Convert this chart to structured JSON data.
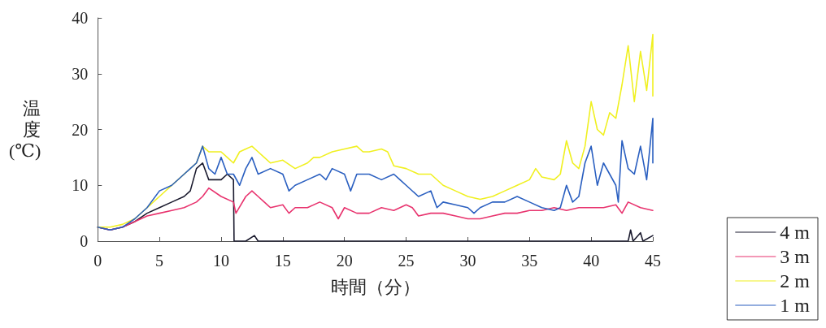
{
  "chart_data": {
    "type": "line",
    "xlabel": "時間（分）",
    "ylabel": "温度(℃)",
    "xlim": [
      0,
      45
    ],
    "xticks": [
      0,
      5,
      10,
      15,
      20,
      25,
      30,
      35,
      40,
      45
    ],
    "ylim": [
      0,
      40
    ],
    "yticks": [
      0,
      10,
      20,
      30,
      40
    ],
    "grid": false,
    "legend": "bottom right",
    "marker": "none",
    "line_style": "solid",
    "series": [
      {
        "name": "4 m",
        "color": "#1a1a2e",
        "x": [
          0,
          1,
          2,
          3,
          4,
          5,
          6,
          7,
          7.5,
          8,
          8.5,
          9,
          10,
          10.5,
          11,
          11.05,
          12,
          12.7,
          13,
          43,
          43.2,
          43.4,
          44,
          44.2,
          45
        ],
        "values": [
          2.5,
          2,
          2.5,
          3.5,
          5,
          6,
          7,
          8,
          9,
          13,
          14,
          11,
          11,
          12,
          11,
          0,
          0,
          1,
          0,
          0,
          2,
          0,
          1.5,
          0,
          1
        ]
      },
      {
        "name": "3 m",
        "color": "#e8336e",
        "x": [
          0,
          1,
          2,
          3,
          4,
          5,
          6,
          7,
          8,
          8.5,
          9,
          10,
          11,
          11.2,
          12,
          12.5,
          13,
          13.5,
          14,
          15,
          15.5,
          16,
          17,
          18,
          19,
          19.5,
          20,
          21,
          22,
          23,
          24,
          25,
          25.5,
          26,
          27,
          28,
          29,
          30,
          31,
          32,
          33,
          34,
          35,
          36,
          37,
          38,
          39,
          40,
          41,
          42,
          42.5,
          43,
          44,
          45
        ],
        "values": [
          2.5,
          2,
          2.5,
          3.5,
          4.5,
          5,
          5.5,
          6,
          7,
          8,
          9.5,
          8,
          7,
          5,
          8,
          9,
          8,
          7,
          6,
          6.5,
          5,
          6,
          6,
          7,
          6,
          4,
          6,
          5,
          5,
          6,
          5.5,
          6.5,
          6,
          4.5,
          5,
          5,
          4.5,
          4,
          4,
          4.5,
          5,
          5,
          5.5,
          5.5,
          6,
          5.5,
          6,
          6,
          6,
          6.5,
          5,
          7,
          6,
          5.5
        ]
      },
      {
        "name": "2 m",
        "color": "#f0f020",
        "x": [
          0,
          1,
          2,
          3,
          4,
          5,
          6,
          7,
          8,
          8.5,
          9,
          10,
          10.5,
          11,
          11.5,
          12,
          12.5,
          13,
          13.5,
          14,
          15,
          16,
          17,
          17.5,
          18,
          19,
          20,
          21,
          21.5,
          22,
          23,
          23.5,
          24,
          25,
          26,
          27,
          28,
          29,
          30,
          31,
          32,
          33,
          34,
          35,
          35.5,
          36,
          37,
          37.5,
          38,
          38.5,
          39,
          39.5,
          40,
          40.5,
          41,
          41.5,
          42,
          42.5,
          43,
          43.5,
          44,
          44.5,
          45,
          45
        ],
        "values": [
          2.5,
          2.5,
          3,
          4,
          6,
          8,
          10,
          12,
          14,
          17,
          16,
          16,
          15,
          14,
          16,
          16.5,
          17,
          16,
          15,
          14,
          14.5,
          13,
          14,
          15,
          15,
          16,
          16.5,
          17,
          16,
          16,
          16.5,
          16,
          13.5,
          13,
          12,
          12,
          10,
          9,
          8,
          7.5,
          8,
          9,
          10,
          11,
          13,
          11.5,
          11,
          12,
          18,
          14,
          13,
          17,
          25,
          20,
          19,
          23,
          22,
          28,
          35,
          25,
          34,
          27,
          37,
          26
        ]
      },
      {
        "name": "1 m",
        "color": "#2a5fc0",
        "x": [
          0,
          1,
          2,
          3,
          4,
          5,
          6,
          7,
          7.5,
          8,
          8.5,
          9,
          9.5,
          10,
          10.5,
          11,
          11.5,
          12,
          12.5,
          13,
          14,
          15,
          15.5,
          16,
          17,
          18,
          18.5,
          19,
          20,
          20.5,
          21,
          22,
          23,
          24,
          24.5,
          25,
          26,
          27,
          27.5,
          28,
          29,
          30,
          30.5,
          31,
          32,
          33,
          34,
          35,
          36,
          37,
          37.5,
          38,
          38.5,
          39,
          39.5,
          40,
          40.5,
          41,
          41.5,
          42,
          42.2,
          42.5,
          43,
          43.5,
          44,
          44.5,
          45,
          45
        ],
        "values": [
          2.5,
          2,
          2.5,
          4,
          6,
          9,
          10,
          12,
          13,
          14,
          17,
          13,
          12,
          15,
          12,
          12,
          10,
          13,
          15,
          12,
          13,
          12,
          9,
          10,
          11,
          12,
          11,
          13,
          12,
          9,
          12,
          12,
          11,
          12,
          11,
          10,
          8,
          9,
          6,
          7,
          6.5,
          6,
          5,
          6,
          7,
          7,
          8,
          7,
          6,
          5.5,
          6,
          10,
          7,
          8,
          14,
          17,
          10,
          14,
          12,
          10,
          7,
          18,
          13,
          12,
          17,
          11,
          22,
          14
        ]
      }
    ]
  }
}
